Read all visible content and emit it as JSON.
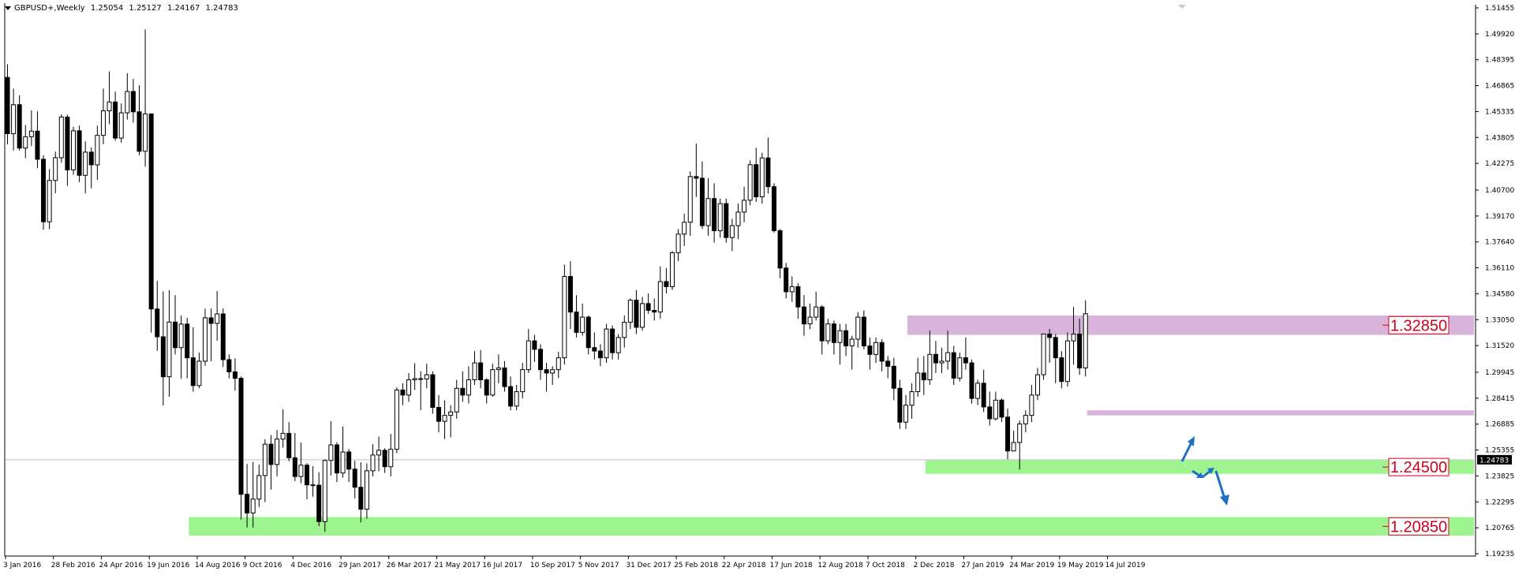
{
  "header": {
    "symbol": "GBPUSD+,Weekly",
    "open": "1.25054",
    "high": "1.25127",
    "low": "1.24167",
    "close": "1.24783"
  },
  "colors": {
    "background": "#ffffff",
    "bull_body": "#ffffff",
    "bear_body": "#000000",
    "wick": "#000000",
    "resistance_zone": "#d8b4dd",
    "support_zone": "#9ef58f",
    "level_label": "#d0021b",
    "arrow": "#1e6fc6",
    "price_line": "#c0c0c0"
  },
  "chart_data": {
    "type": "candlestick",
    "x_tick_labels": [
      "3 Jan 2016",
      "28 Feb 2016",
      "24 Apr 2016",
      "19 Jun 2016",
      "14 Aug 2016",
      "9 Oct 2016",
      "4 Dec 2016",
      "29 Jan 2017",
      "26 Mar 2017",
      "21 May 2017",
      "16 Jul 2017",
      "10 Sep 2017",
      "5 Nov 2017",
      "31 Dec 2017",
      "25 Feb 2018",
      "22 Apr 2018",
      "17 Jun 2018",
      "12 Aug 2018",
      "7 Oct 2018",
      "2 Dec 2018",
      "27 Jan 2019",
      "24 Mar 2019",
      "19 May 2019",
      "14 Jul 2019"
    ],
    "y_tick_labels": [
      "1.51455",
      "1.49920",
      "1.48395",
      "1.46865",
      "1.45335",
      "1.43805",
      "1.42275",
      "1.40700",
      "1.39170",
      "1.37640",
      "1.36110",
      "1.34580",
      "1.33050",
      "1.31520",
      "1.29945",
      "1.28415",
      "1.26885",
      "1.25355",
      "1.23825",
      "1.22295",
      "1.20765",
      "1.19235"
    ],
    "ylim": [
      1.19235,
      1.51455
    ],
    "current_price": "1.24783",
    "zones": [
      {
        "name": "resistance-1",
        "price_low": 1.3215,
        "price_high": 1.333,
        "label": "1.32850",
        "from_week": 151
      },
      {
        "name": "resistance-2",
        "price_low": 1.274,
        "price_high": 1.277,
        "label": "",
        "from_week": 181
      },
      {
        "name": "support-1",
        "price_low": 1.2395,
        "price_high": 1.2475,
        "label": "1.24500",
        "from_week": 154
      },
      {
        "name": "support-2",
        "price_low": 1.203,
        "price_high": 1.214,
        "label": "1.20850",
        "from_week": 31
      }
    ],
    "grid": false,
    "candles": [
      [
        1.4735,
        1.4813,
        1.434,
        1.4403
      ],
      [
        1.4403,
        1.4669,
        1.4304,
        1.4574
      ],
      [
        1.4574,
        1.463,
        1.4303,
        1.4318
      ],
      [
        1.4318,
        1.4454,
        1.4258,
        1.4385
      ],
      [
        1.4385,
        1.454,
        1.433,
        1.4418
      ],
      [
        1.4418,
        1.4536,
        1.42,
        1.4252
      ],
      [
        1.4252,
        1.4276,
        1.3836,
        1.3883
      ],
      [
        1.3883,
        1.4194,
        1.3839,
        1.4127
      ],
      [
        1.4127,
        1.4297,
        1.4051,
        1.4261
      ],
      [
        1.4261,
        1.4518,
        1.4232,
        1.4501
      ],
      [
        1.4501,
        1.4514,
        1.4095,
        1.4189
      ],
      [
        1.4189,
        1.4444,
        1.416,
        1.442
      ],
      [
        1.442,
        1.445,
        1.4117,
        1.4157
      ],
      [
        1.4157,
        1.4358,
        1.405,
        1.4294
      ],
      [
        1.4294,
        1.4322,
        1.408,
        1.4219
      ],
      [
        1.4219,
        1.445,
        1.413,
        1.4393
      ],
      [
        1.4393,
        1.4669,
        1.4341,
        1.4538
      ],
      [
        1.4538,
        1.477,
        1.4459,
        1.459
      ],
      [
        1.459,
        1.4651,
        1.4361,
        1.4377
      ],
      [
        1.4377,
        1.4582,
        1.435,
        1.4526
      ],
      [
        1.4526,
        1.476,
        1.4487,
        1.4652
      ],
      [
        1.4652,
        1.4726,
        1.4468,
        1.4532
      ],
      [
        1.4532,
        1.4689,
        1.4276,
        1.4299
      ],
      [
        1.4299,
        1.5018,
        1.4209,
        1.452
      ],
      [
        1.452,
        1.452,
        1.3229,
        1.3368
      ],
      [
        1.3368,
        1.3534,
        1.3121,
        1.3204
      ],
      [
        1.3204,
        1.3472,
        1.2798,
        1.2968
      ],
      [
        1.2968,
        1.348,
        1.285,
        1.3291
      ],
      [
        1.3291,
        1.345,
        1.31,
        1.314
      ],
      [
        1.314,
        1.333,
        1.2956,
        1.3279
      ],
      [
        1.3279,
        1.3316,
        1.2959,
        1.308
      ],
      [
        1.308,
        1.326,
        1.288,
        1.2916
      ],
      [
        1.2916,
        1.311,
        1.29,
        1.306
      ],
      [
        1.306,
        1.337,
        1.3032,
        1.3316
      ],
      [
        1.3316,
        1.3371,
        1.306,
        1.3283
      ],
      [
        1.3283,
        1.3474,
        1.318,
        1.3339
      ],
      [
        1.3339,
        1.3371,
        1.3026,
        1.3069
      ],
      [
        1.3069,
        1.31,
        1.2959,
        1.2997
      ],
      [
        1.2997,
        1.3077,
        1.2886,
        1.2959
      ],
      [
        1.2959,
        1.2969,
        1.2125,
        1.2274
      ],
      [
        1.2274,
        1.2453,
        1.2078,
        1.2164
      ],
      [
        1.2164,
        1.2465,
        1.2078,
        1.2246
      ],
      [
        1.2246,
        1.245,
        1.2199,
        1.2385
      ],
      [
        1.2385,
        1.2599,
        1.2228,
        1.257
      ],
      [
        1.257,
        1.2624,
        1.2302,
        1.245
      ],
      [
        1.245,
        1.2654,
        1.238,
        1.26
      ],
      [
        1.26,
        1.2775,
        1.255,
        1.2634
      ],
      [
        1.2634,
        1.27,
        1.247,
        1.249
      ],
      [
        1.249,
        1.2637,
        1.2352,
        1.2379
      ],
      [
        1.2379,
        1.258,
        1.234,
        1.2446
      ],
      [
        1.2446,
        1.2458,
        1.2245,
        1.233
      ],
      [
        1.233,
        1.244,
        1.226,
        1.2328
      ],
      [
        1.2328,
        1.2404,
        1.2086,
        1.2113
      ],
      [
        1.2113,
        1.248,
        1.2053,
        1.2474
      ],
      [
        1.2474,
        1.2706,
        1.2385,
        1.2566
      ],
      [
        1.2566,
        1.2582,
        1.2346,
        1.24
      ],
      [
        1.24,
        1.2675,
        1.2373,
        1.2524
      ],
      [
        1.2524,
        1.2542,
        1.2347,
        1.2423
      ],
      [
        1.2423,
        1.2472,
        1.225,
        1.2316
      ],
      [
        1.2316,
        1.2463,
        1.2108,
        1.2186
      ],
      [
        1.2186,
        1.2457,
        1.213,
        1.2413
      ],
      [
        1.2413,
        1.257,
        1.238,
        1.2506
      ],
      [
        1.2506,
        1.2615,
        1.241,
        1.2534
      ],
      [
        1.2534,
        1.2546,
        1.24,
        1.2437
      ],
      [
        1.2437,
        1.263,
        1.238,
        1.254
      ],
      [
        1.254,
        1.2905,
        1.2517,
        1.289
      ],
      [
        1.289,
        1.293,
        1.28,
        1.286
      ],
      [
        1.286,
        1.299,
        1.282,
        1.295
      ],
      [
        1.295,
        1.3048,
        1.289,
        1.2957
      ],
      [
        1.2957,
        1.3,
        1.277,
        1.2955
      ],
      [
        1.2955,
        1.3045,
        1.29,
        1.298
      ],
      [
        1.298,
        1.3,
        1.275,
        1.2787
      ],
      [
        1.2787,
        1.286,
        1.264,
        1.2705
      ],
      [
        1.2705,
        1.283,
        1.26,
        1.274
      ],
      [
        1.274,
        1.28,
        1.261,
        1.276
      ],
      [
        1.276,
        1.295,
        1.272,
        1.29
      ],
      [
        1.29,
        1.3,
        1.282,
        1.286
      ],
      [
        1.286,
        1.303,
        1.281,
        1.295
      ],
      [
        1.295,
        1.312,
        1.292,
        1.305
      ],
      [
        1.305,
        1.3126,
        1.29,
        1.295
      ],
      [
        1.295,
        1.296,
        1.281,
        1.286
      ],
      [
        1.286,
        1.3045,
        1.285,
        1.301
      ],
      [
        1.301,
        1.31,
        1.293,
        1.302
      ],
      [
        1.302,
        1.306,
        1.288,
        1.291
      ],
      [
        1.291,
        1.297,
        1.277,
        1.2795
      ],
      [
        1.2795,
        1.292,
        1.277,
        1.288
      ],
      [
        1.288,
        1.305,
        1.284,
        1.301
      ],
      [
        1.301,
        1.325,
        1.299,
        1.318
      ],
      [
        1.318,
        1.3215,
        1.3056,
        1.313
      ],
      [
        1.313,
        1.316,
        1.295,
        1.301
      ],
      [
        1.301,
        1.305,
        1.288,
        1.299
      ],
      [
        1.299,
        1.303,
        1.292,
        1.301
      ],
      [
        1.301,
        1.3115,
        1.296,
        1.308
      ],
      [
        1.308,
        1.363,
        1.304,
        1.356
      ],
      [
        1.356,
        1.365,
        1.325,
        1.335
      ],
      [
        1.335,
        1.345,
        1.32,
        1.323
      ],
      [
        1.323,
        1.34,
        1.321,
        1.332
      ],
      [
        1.332,
        1.333,
        1.31,
        1.314
      ],
      [
        1.314,
        1.323,
        1.307,
        1.312
      ],
      [
        1.312,
        1.316,
        1.303,
        1.308
      ],
      [
        1.308,
        1.328,
        1.305,
        1.325
      ],
      [
        1.325,
        1.327,
        1.307,
        1.311
      ],
      [
        1.311,
        1.322,
        1.307,
        1.32
      ],
      [
        1.32,
        1.333,
        1.314,
        1.329
      ],
      [
        1.329,
        1.343,
        1.325,
        1.342
      ],
      [
        1.342,
        1.348,
        1.322,
        1.326
      ],
      [
        1.326,
        1.344,
        1.324,
        1.34
      ],
      [
        1.34,
        1.346,
        1.334,
        1.336
      ],
      [
        1.336,
        1.343,
        1.33,
        1.335
      ],
      [
        1.335,
        1.362,
        1.331,
        1.353
      ],
      [
        1.353,
        1.361,
        1.346,
        1.35
      ],
      [
        1.35,
        1.371,
        1.348,
        1.37
      ],
      [
        1.37,
        1.384,
        1.365,
        1.381
      ],
      [
        1.381,
        1.393,
        1.374,
        1.388
      ],
      [
        1.388,
        1.418,
        1.38,
        1.415
      ],
      [
        1.415,
        1.4345,
        1.403,
        1.414
      ],
      [
        1.414,
        1.424,
        1.384,
        1.386
      ],
      [
        1.386,
        1.414,
        1.38,
        1.402
      ],
      [
        1.402,
        1.411,
        1.376,
        1.383
      ],
      [
        1.383,
        1.402,
        1.379,
        1.399
      ],
      [
        1.399,
        1.402,
        1.376,
        1.379
      ],
      [
        1.379,
        1.39,
        1.371,
        1.386
      ],
      [
        1.386,
        1.399,
        1.378,
        1.394
      ],
      [
        1.394,
        1.409,
        1.388,
        1.401
      ],
      [
        1.401,
        1.4245,
        1.398,
        1.422
      ],
      [
        1.422,
        1.432,
        1.4,
        1.403
      ],
      [
        1.403,
        1.429,
        1.399,
        1.426
      ],
      [
        1.426,
        1.438,
        1.405,
        1.409
      ],
      [
        1.409,
        1.411,
        1.382,
        1.383
      ],
      [
        1.383,
        1.384,
        1.355,
        1.361
      ],
      [
        1.361,
        1.364,
        1.343,
        1.347
      ],
      [
        1.347,
        1.356,
        1.341,
        1.35
      ],
      [
        1.35,
        1.352,
        1.331,
        1.338
      ],
      [
        1.338,
        1.345,
        1.321,
        1.328
      ],
      [
        1.328,
        1.34,
        1.325,
        1.332
      ],
      [
        1.332,
        1.347,
        1.33,
        1.338
      ],
      [
        1.338,
        1.339,
        1.31,
        1.318
      ],
      [
        1.318,
        1.331,
        1.316,
        1.328
      ],
      [
        1.328,
        1.33,
        1.31,
        1.317
      ],
      [
        1.317,
        1.328,
        1.304,
        1.324
      ],
      [
        1.324,
        1.328,
        1.309,
        1.315
      ],
      [
        1.315,
        1.321,
        1.301,
        1.319
      ],
      [
        1.319,
        1.335,
        1.314,
        1.332
      ],
      [
        1.332,
        1.336,
        1.313,
        1.315
      ],
      [
        1.315,
        1.32,
        1.301,
        1.31
      ],
      [
        1.31,
        1.32,
        1.305,
        1.317
      ],
      [
        1.317,
        1.319,
        1.3,
        1.306
      ],
      [
        1.306,
        1.309,
        1.296,
        1.303
      ],
      [
        1.303,
        1.308,
        1.283,
        1.29
      ],
      [
        1.29,
        1.295,
        1.266,
        1.27
      ],
      [
        1.27,
        1.286,
        1.266,
        1.28
      ],
      [
        1.28,
        1.293,
        1.272,
        1.288
      ],
      [
        1.288,
        1.308,
        1.285,
        1.299
      ],
      [
        1.299,
        1.309,
        1.286,
        1.295
      ],
      [
        1.295,
        1.324,
        1.292,
        1.31
      ],
      [
        1.31,
        1.318,
        1.299,
        1.305
      ],
      [
        1.305,
        1.314,
        1.299,
        1.306
      ],
      [
        1.306,
        1.324,
        1.301,
        1.311
      ],
      [
        1.311,
        1.315,
        1.292,
        1.296
      ],
      [
        1.296,
        1.311,
        1.294,
        1.308
      ],
      [
        1.308,
        1.32,
        1.301,
        1.305
      ],
      [
        1.305,
        1.307,
        1.281,
        1.284
      ],
      [
        1.284,
        1.295,
        1.28,
        1.293
      ],
      [
        1.293,
        1.301,
        1.276,
        1.279
      ],
      [
        1.279,
        1.288,
        1.268,
        1.272
      ],
      [
        1.272,
        1.288,
        1.271,
        1.283
      ],
      [
        1.283,
        1.284,
        1.27,
        1.273
      ],
      [
        1.273,
        1.278,
        1.248,
        1.253
      ],
      [
        1.253,
        1.265,
        1.253,
        1.258
      ],
      [
        1.258,
        1.271,
        1.242,
        1.269
      ],
      [
        1.269,
        1.277,
        1.264,
        1.274
      ],
      [
        1.274,
        1.292,
        1.27,
        1.286
      ],
      [
        1.286,
        1.302,
        1.283,
        1.298
      ],
      [
        1.298,
        1.322,
        1.295,
        1.322
      ],
      [
        1.322,
        1.325,
        1.305,
        1.32
      ],
      [
        1.32,
        1.322,
        1.293,
        1.308
      ],
      [
        1.308,
        1.312,
        1.29,
        1.294
      ],
      [
        1.294,
        1.323,
        1.291,
        1.318
      ],
      [
        1.318,
        1.338,
        1.304,
        1.322
      ],
      [
        1.322,
        1.331,
        1.298,
        1.302
      ],
      [
        1.302,
        1.342,
        1.297,
        1.334
      ]
    ]
  }
}
